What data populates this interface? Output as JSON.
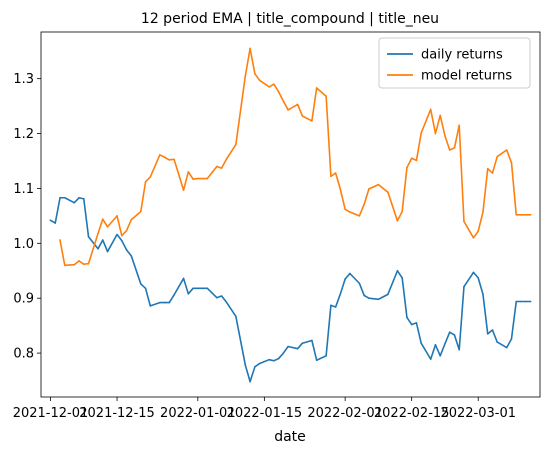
{
  "chart_data": {
    "type": "line",
    "title": "12 period EMA | title_compound | title_neu",
    "xlabel": "date",
    "ylabel": "",
    "ylim": [
      0.72,
      1.385
    ],
    "yticks": [
      "0.8",
      "0.9",
      "1.0",
      "1.1",
      "1.2",
      "1.3"
    ],
    "xticks": [
      {
        "label": "2021-12-01",
        "date": "2021-12-01"
      },
      {
        "label": "2021-12-15",
        "date": "2021-12-15"
      },
      {
        "label": "2022-01-01",
        "date": "2022-01-01"
      },
      {
        "label": "2022-01-15",
        "date": "2022-01-15"
      },
      {
        "label": "2022-02-01",
        "date": "2022-02-01"
      },
      {
        "label": "2022-02-15",
        "date": "2022-02-15"
      },
      {
        "label": "2022-03-01",
        "date": "2022-03-01"
      }
    ],
    "xlim": [
      "2021-11-29",
      "2022-03-14"
    ],
    "x": [
      "2021-12-01",
      "2021-12-02",
      "2021-12-03",
      "2021-12-04",
      "2021-12-06",
      "2021-12-07",
      "2021-12-08",
      "2021-12-09",
      "2021-12-11",
      "2021-12-12",
      "2021-12-13",
      "2021-12-15",
      "2021-12-16",
      "2021-12-17",
      "2021-12-18",
      "2021-12-20",
      "2021-12-21",
      "2021-12-22",
      "2021-12-24",
      "2021-12-25",
      "2021-12-26",
      "2021-12-27",
      "2021-12-29",
      "2021-12-30",
      "2021-12-31",
      "2022-01-01",
      "2022-01-03",
      "2022-01-05",
      "2022-01-06",
      "2022-01-07",
      "2022-01-09",
      "2022-01-11",
      "2022-01-12",
      "2022-01-13",
      "2022-01-14",
      "2022-01-16",
      "2022-01-17",
      "2022-01-18",
      "2022-01-19",
      "2022-01-20",
      "2022-01-22",
      "2022-01-23",
      "2022-01-25",
      "2022-01-26",
      "2022-01-28",
      "2022-01-29",
      "2022-01-30",
      "2022-01-31",
      "2022-02-01",
      "2022-02-02",
      "2022-02-04",
      "2022-02-05",
      "2022-02-06",
      "2022-02-08",
      "2022-02-10",
      "2022-02-12",
      "2022-02-13",
      "2022-02-14",
      "2022-02-15",
      "2022-02-16",
      "2022-02-17",
      "2022-02-19",
      "2022-02-20",
      "2022-02-21",
      "2022-02-22",
      "2022-02-23",
      "2022-02-24",
      "2022-02-25",
      "2022-02-26",
      "2022-02-28",
      "2022-03-01",
      "2022-03-02",
      "2022-03-03",
      "2022-03-04",
      "2022-03-05",
      "2022-03-07",
      "2022-03-08",
      "2022-03-09",
      "2022-03-10",
      "2022-03-11",
      "2022-03-12"
    ],
    "series": [
      {
        "name": "daily returns",
        "color": "#1f77b4",
        "values": [
          1.042,
          1.037,
          1.083,
          1.083,
          1.074,
          1.083,
          1.081,
          1.012,
          0.99,
          1.006,
          0.985,
          1.016,
          1.005,
          0.988,
          0.977,
          0.926,
          0.918,
          0.886,
          0.892,
          0.892,
          0.892,
          0.906,
          0.936,
          0.908,
          0.918,
          0.918,
          0.918,
          0.901,
          0.904,
          0.893,
          0.867,
          0.778,
          0.748,
          0.775,
          0.781,
          0.788,
          0.786,
          0.79,
          0.8,
          0.812,
          0.808,
          0.818,
          0.823,
          0.787,
          0.795,
          0.887,
          0.884,
          0.908,
          0.935,
          0.945,
          0.927,
          0.905,
          0.9,
          0.898,
          0.907,
          0.95,
          0.937,
          0.865,
          0.852,
          0.855,
          0.818,
          0.789,
          0.815,
          0.795,
          0.817,
          0.838,
          0.833,
          0.806,
          0.921,
          0.947,
          0.937,
          0.907,
          0.835,
          0.842,
          0.82,
          0.81,
          0.826,
          0.894,
          0.894,
          0.894,
          0.894
        ]
      },
      {
        "name": "model returns",
        "color": "#ff7f0e",
        "values": [
          null,
          null,
          1.006,
          0.96,
          0.961,
          0.968,
          0.962,
          0.963,
          1.018,
          1.044,
          1.03,
          1.05,
          1.014,
          1.023,
          1.043,
          1.058,
          1.112,
          1.121,
          1.161,
          1.157,
          1.152,
          1.153,
          1.097,
          1.13,
          1.117,
          1.118,
          1.118,
          1.14,
          1.137,
          1.153,
          1.18,
          1.305,
          1.355,
          1.309,
          1.297,
          1.285,
          1.29,
          1.276,
          1.259,
          1.243,
          1.253,
          1.232,
          1.223,
          1.283,
          1.268,
          1.122,
          1.128,
          1.098,
          1.062,
          1.057,
          1.05,
          1.071,
          1.099,
          1.107,
          1.093,
          1.041,
          1.058,
          1.138,
          1.155,
          1.151,
          1.201,
          1.244,
          1.2,
          1.233,
          1.196,
          1.17,
          1.174,
          1.215,
          1.04,
          1.01,
          1.022,
          1.057,
          1.136,
          1.128,
          1.158,
          1.17,
          1.147,
          1.052,
          1.052,
          1.052,
          1.052
        ]
      }
    ],
    "legend": {
      "placement": "top-right"
    },
    "grid": false
  }
}
